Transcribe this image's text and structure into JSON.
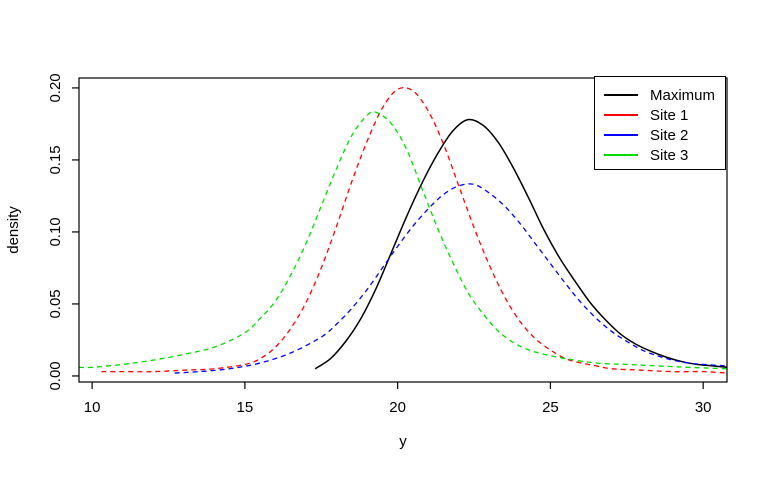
{
  "figure": {
    "background": "#ffffff",
    "title": ""
  },
  "chart_data": {
    "type": "line",
    "title": "",
    "xlabel": "y",
    "ylabel": "density",
    "xlim": [
      9.57,
      30.78
    ],
    "ylim": [
      -0.0042,
      0.2069
    ],
    "grid": false,
    "x_ticks": [
      10,
      15,
      20,
      25,
      30
    ],
    "x_tick_labels": [
      "10",
      "15",
      "20",
      "25",
      "30"
    ],
    "y_ticks": [
      0.0,
      0.05,
      0.1,
      0.15,
      0.2
    ],
    "y_tick_labels": [
      "0.00",
      "0.05",
      "0.10",
      "0.15",
      "0.20"
    ],
    "legend": {
      "position": "top-right",
      "border": true
    },
    "series": [
      {
        "name": "Maximum",
        "color": "#000000",
        "linetype": "solid",
        "points": [
          [
            17.3,
            0.005
          ],
          [
            17.8,
            0.012
          ],
          [
            18.3,
            0.024
          ],
          [
            18.8,
            0.04
          ],
          [
            19.3,
            0.061
          ],
          [
            19.8,
            0.086
          ],
          [
            20.3,
            0.111
          ],
          [
            20.8,
            0.134
          ],
          [
            21.3,
            0.154
          ],
          [
            21.8,
            0.17
          ],
          [
            22.3,
            0.178
          ],
          [
            22.8,
            0.174
          ],
          [
            23.3,
            0.162
          ],
          [
            23.8,
            0.144
          ],
          [
            24.3,
            0.123
          ],
          [
            24.8,
            0.101
          ],
          [
            25.3,
            0.082
          ],
          [
            25.8,
            0.066
          ],
          [
            26.3,
            0.051
          ],
          [
            26.8,
            0.039
          ],
          [
            27.3,
            0.029
          ],
          [
            27.8,
            0.022
          ],
          [
            28.3,
            0.017
          ],
          [
            28.8,
            0.013
          ],
          [
            29.3,
            0.01
          ],
          [
            29.8,
            0.008
          ],
          [
            30.3,
            0.007
          ],
          [
            30.78,
            0.006
          ]
        ]
      },
      {
        "name": "Site 1",
        "color": "#ff0000",
        "linetype": "dashed",
        "points": [
          [
            10.3,
            0.003
          ],
          [
            11,
            0.003
          ],
          [
            12,
            0.003
          ],
          [
            13,
            0.004
          ],
          [
            14,
            0.005
          ],
          [
            15,
            0.008
          ],
          [
            15.5,
            0.012
          ],
          [
            16,
            0.02
          ],
          [
            16.5,
            0.033
          ],
          [
            17,
            0.051
          ],
          [
            17.5,
            0.075
          ],
          [
            18,
            0.104
          ],
          [
            18.5,
            0.135
          ],
          [
            19,
            0.163
          ],
          [
            19.5,
            0.186
          ],
          [
            20,
            0.199
          ],
          [
            20.5,
            0.198
          ],
          [
            21,
            0.184
          ],
          [
            21.5,
            0.161
          ],
          [
            22,
            0.132
          ],
          [
            22.5,
            0.103
          ],
          [
            23,
            0.077
          ],
          [
            23.5,
            0.055
          ],
          [
            24,
            0.038
          ],
          [
            24.5,
            0.026
          ],
          [
            25,
            0.018
          ],
          [
            25.5,
            0.012
          ],
          [
            26,
            0.009
          ],
          [
            26.5,
            0.007
          ],
          [
            27,
            0.005
          ],
          [
            28,
            0.004
          ],
          [
            29,
            0.003
          ],
          [
            30,
            0.003
          ],
          [
            30.78,
            0.002
          ]
        ]
      },
      {
        "name": "Site 2",
        "color": "#0000ff",
        "linetype": "dashed",
        "points": [
          [
            12.7,
            0.002
          ],
          [
            13.5,
            0.003
          ],
          [
            14.5,
            0.005
          ],
          [
            15.5,
            0.009
          ],
          [
            16.5,
            0.016
          ],
          [
            17.5,
            0.027
          ],
          [
            18,
            0.036
          ],
          [
            18.5,
            0.047
          ],
          [
            19,
            0.06
          ],
          [
            19.5,
            0.075
          ],
          [
            20,
            0.09
          ],
          [
            20.5,
            0.104
          ],
          [
            21,
            0.116
          ],
          [
            21.5,
            0.126
          ],
          [
            22,
            0.132
          ],
          [
            22.5,
            0.133
          ],
          [
            23,
            0.127
          ],
          [
            23.5,
            0.118
          ],
          [
            24,
            0.106
          ],
          [
            24.5,
            0.092
          ],
          [
            25,
            0.078
          ],
          [
            25.5,
            0.064
          ],
          [
            26,
            0.051
          ],
          [
            26.5,
            0.04
          ],
          [
            27,
            0.031
          ],
          [
            27.5,
            0.024
          ],
          [
            28,
            0.018
          ],
          [
            28.5,
            0.014
          ],
          [
            29,
            0.011
          ],
          [
            29.5,
            0.009
          ],
          [
            30,
            0.008
          ],
          [
            30.78,
            0.007
          ]
        ]
      },
      {
        "name": "Site 3",
        "color": "#00dd00",
        "linetype": "dashed",
        "points": [
          [
            9.57,
            0.006
          ],
          [
            10,
            0.006
          ],
          [
            11,
            0.008
          ],
          [
            12,
            0.011
          ],
          [
            13,
            0.015
          ],
          [
            14,
            0.02
          ],
          [
            15,
            0.03
          ],
          [
            15.5,
            0.04
          ],
          [
            16,
            0.052
          ],
          [
            16.5,
            0.07
          ],
          [
            17,
            0.092
          ],
          [
            17.5,
            0.118
          ],
          [
            18,
            0.144
          ],
          [
            18.5,
            0.167
          ],
          [
            19,
            0.181
          ],
          [
            19.3,
            0.183
          ],
          [
            19.8,
            0.175
          ],
          [
            20.3,
            0.157
          ],
          [
            20.8,
            0.13
          ],
          [
            21.3,
            0.103
          ],
          [
            21.8,
            0.079
          ],
          [
            22.3,
            0.058
          ],
          [
            22.8,
            0.043
          ],
          [
            23.3,
            0.031
          ],
          [
            23.8,
            0.023
          ],
          [
            24.3,
            0.018
          ],
          [
            24.8,
            0.015
          ],
          [
            25.5,
            0.012
          ],
          [
            26.5,
            0.009
          ],
          [
            27.5,
            0.008
          ],
          [
            28.5,
            0.007
          ],
          [
            29.5,
            0.006
          ],
          [
            30.78,
            0.005
          ]
        ]
      }
    ]
  }
}
